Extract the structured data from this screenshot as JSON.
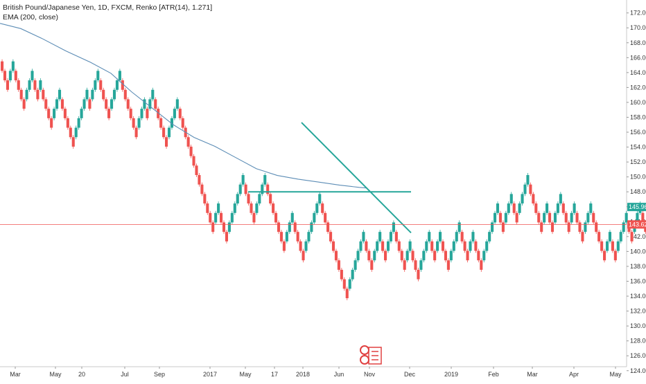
{
  "legend": {
    "symbol_line": "British Pound/Japanese Yen, 1D, FXCM, Renko [ATR(14), 1.271]",
    "indicator_line": "EMA (200, close)"
  },
  "price_tags": {
    "last": "145.965",
    "horizontal_line": "143.623"
  },
  "colors": {
    "up": "#26a69a",
    "down": "#ef5350",
    "ema": "#5b8cb5",
    "trendline": "#26a69a",
    "horizontal_line": "#ef5350",
    "last_tag": "#26a69a",
    "line_tag": "#ef5350",
    "watermark": "#e04040"
  },
  "chart_data": {
    "type": "renko",
    "title": "British Pound/Japanese Yen, 1D, FXCM, Renko [ATR(14), 1.271]",
    "box_size": 1.271,
    "ylim": [
      124,
      173
    ],
    "y_ticks": [
      124,
      126,
      128,
      130,
      132,
      134,
      136,
      138,
      140,
      142,
      144,
      146,
      148,
      150,
      152,
      154,
      156,
      158,
      160,
      162,
      164,
      166,
      168,
      170,
      172
    ],
    "y_tick_labels": [
      "124.000",
      "126.000",
      "128.000",
      "130.000",
      "132.000",
      "134.000",
      "136.000",
      "138.000",
      "140.000",
      "142.000",
      "144.000",
      "146.000",
      "148.000",
      "150.000",
      "152.000",
      "154.000",
      "156.000",
      "158.000",
      "160.000",
      "162.000",
      "164.000",
      "166.000",
      "168.000",
      "170.000",
      "172.000"
    ],
    "x_labels": [
      "Mar",
      "May",
      "20",
      "Jul",
      "Sep",
      "2017",
      "May",
      "17",
      "2018",
      "Jun",
      "Nov",
      "Dec",
      "2019",
      "Feb",
      "Mar",
      "Apr",
      "May"
    ],
    "renko_start": 165.5,
    "renko_moves": [
      -3,
      2,
      -4,
      3,
      -2,
      1,
      -4,
      3,
      -5,
      5,
      -1,
      3,
      -4,
      4,
      -6,
      3,
      -1,
      2,
      -5,
      4,
      -13,
      2,
      -3,
      6,
      -4,
      4,
      -7,
      3,
      -4,
      6,
      -10,
      6,
      -3,
      3,
      -2,
      3,
      -4,
      2,
      -3,
      4,
      -2,
      2,
      -3,
      4,
      -3,
      2,
      -3,
      6,
      -2,
      3,
      -2,
      4,
      -5,
      2,
      -2,
      3,
      -3,
      2,
      -3,
      3,
      -5,
      2,
      -2,
      4,
      -2,
      3,
      -2
    ],
    "ema_200": [
      {
        "x": 0,
        "y": 170.6
      },
      {
        "x": 30,
        "y": 169.9
      },
      {
        "x": 60,
        "y": 168.6
      },
      {
        "x": 95,
        "y": 166.9
      },
      {
        "x": 130,
        "y": 165.4
      },
      {
        "x": 160,
        "y": 163.9
      },
      {
        "x": 190,
        "y": 161.4
      },
      {
        "x": 220,
        "y": 159.2
      },
      {
        "x": 250,
        "y": 157.0
      },
      {
        "x": 280,
        "y": 155.3
      },
      {
        "x": 310,
        "y": 154.1
      },
      {
        "x": 340,
        "y": 152.6
      },
      {
        "x": 370,
        "y": 151.1
      },
      {
        "x": 400,
        "y": 150.2
      },
      {
        "x": 430,
        "y": 149.7
      },
      {
        "x": 460,
        "y": 149.3
      },
      {
        "x": 490,
        "y": 148.9
      },
      {
        "x": 518,
        "y": 148.6
      },
      {
        "x": 530,
        "y": 148.5
      }
    ],
    "drawings": [
      {
        "kind": "horizontal_ray",
        "y": 148.0,
        "x_start": 358,
        "x_end": 593
      },
      {
        "kind": "trendline",
        "from": {
          "x": 435,
          "y": 157.3
        },
        "to": {
          "x": 593,
          "y": 142.5
        }
      },
      {
        "kind": "horizontal_line",
        "y": 143.623
      }
    ],
    "grid": false
  }
}
